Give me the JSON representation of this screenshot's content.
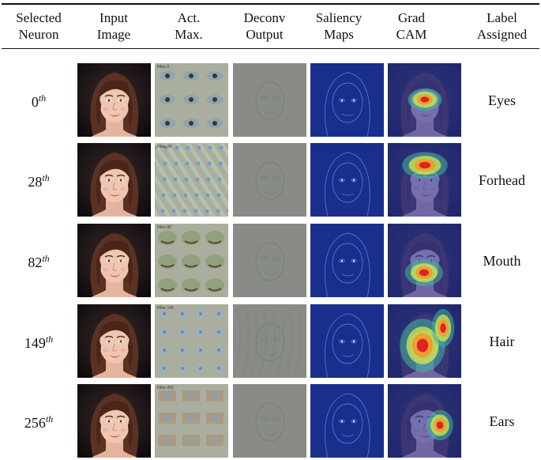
{
  "headers": [
    {
      "line1": "Selected",
      "line2": "Neuron"
    },
    {
      "line1": "Input",
      "line2": "Image"
    },
    {
      "line1": "Act.",
      "line2": "Max."
    },
    {
      "line1": "Deconv",
      "line2": "Output"
    },
    {
      "line1": "Saliency",
      "line2": "Maps"
    },
    {
      "line1": "Grad",
      "line2": "CAM"
    },
    {
      "line1": "Label",
      "line2": "Assigned"
    }
  ],
  "rows": [
    {
      "neuron": "0",
      "sup": "th",
      "label": "Eyes",
      "act_tag": "Filter 0",
      "cam_focus": "eyes"
    },
    {
      "neuron": "28",
      "sup": "th",
      "label": "Forhead",
      "act_tag": "Filter 28",
      "cam_focus": "forehead"
    },
    {
      "neuron": "82",
      "sup": "th",
      "label": "Mouth",
      "act_tag": "Filter 82",
      "cam_focus": "mouth"
    },
    {
      "neuron": "149",
      "sup": "th",
      "label": "Hair",
      "act_tag": "Filter 149",
      "cam_focus": "hair"
    },
    {
      "neuron": "256",
      "sup": "th",
      "label": "Ears",
      "act_tag": "Filter 256",
      "cam_focus": "ears"
    }
  ],
  "colors": {
    "act_background": "#a9ae9e",
    "deconv_background": "#8a8a86",
    "saliency_background": "#1a2e8c",
    "cam_background": "#2a3aa8"
  }
}
